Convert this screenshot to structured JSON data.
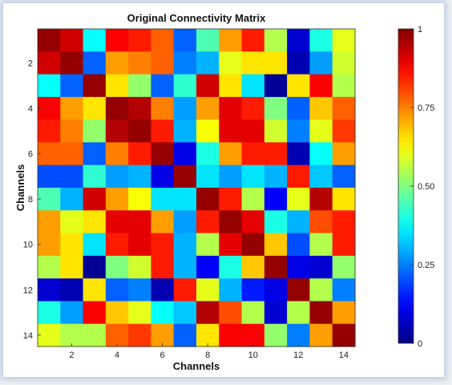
{
  "chart_data": {
    "type": "heatmap",
    "title": "Original Connectivity Matrix",
    "xlabel": "Channels",
    "ylabel": "Channels",
    "x_ticks": [
      "2",
      "4",
      "6",
      "8",
      "10",
      "12",
      "14"
    ],
    "y_ticks": [
      "2",
      "4",
      "6",
      "8",
      "10",
      "12",
      "14"
    ],
    "colorbar_ticks": [
      "0",
      "0.25",
      "0.50",
      "0.75",
      "1"
    ],
    "colormap": "jet",
    "value_range": [
      0,
      1
    ],
    "rows": 14,
    "cols": 14,
    "values": [
      [
        0.98,
        0.92,
        0.38,
        0.88,
        0.85,
        0.78,
        0.22,
        0.45,
        0.72,
        0.85,
        0.55,
        0.08,
        0.4,
        0.6
      ],
      [
        0.92,
        0.98,
        0.22,
        0.72,
        0.75,
        0.78,
        0.25,
        0.3,
        0.6,
        0.65,
        0.65,
        0.05,
        0.28,
        0.58
      ],
      [
        0.38,
        0.22,
        0.98,
        0.65,
        0.52,
        0.22,
        0.42,
        0.92,
        0.65,
        0.35,
        0.02,
        0.65,
        0.88,
        0.55
      ],
      [
        0.88,
        0.72,
        0.65,
        0.98,
        0.95,
        0.75,
        0.28,
        0.72,
        0.9,
        0.85,
        0.5,
        0.22,
        0.68,
        0.78
      ],
      [
        0.85,
        0.75,
        0.52,
        0.95,
        0.98,
        0.85,
        0.3,
        0.62,
        0.9,
        0.9,
        0.58,
        0.25,
        0.6,
        0.82
      ],
      [
        0.78,
        0.78,
        0.22,
        0.75,
        0.85,
        0.98,
        0.1,
        0.4,
        0.72,
        0.85,
        0.85,
        0.05,
        0.38,
        0.72
      ],
      [
        0.2,
        0.2,
        0.42,
        0.28,
        0.3,
        0.1,
        0.98,
        0.35,
        0.28,
        0.35,
        0.3,
        0.85,
        0.32,
        0.22
      ],
      [
        0.45,
        0.3,
        0.92,
        0.72,
        0.62,
        0.35,
        0.35,
        0.98,
        0.85,
        0.55,
        0.12,
        0.6,
        0.95,
        0.65
      ],
      [
        0.72,
        0.6,
        0.65,
        0.9,
        0.9,
        0.72,
        0.28,
        0.85,
        0.98,
        0.9,
        0.4,
        0.3,
        0.8,
        0.85
      ],
      [
        0.72,
        0.65,
        0.35,
        0.85,
        0.9,
        0.85,
        0.3,
        0.55,
        0.9,
        0.98,
        0.68,
        0.2,
        0.55,
        0.85
      ],
      [
        0.55,
        0.65,
        0.02,
        0.5,
        0.58,
        0.85,
        0.3,
        0.12,
        0.4,
        0.68,
        0.98,
        0.1,
        0.08,
        0.52
      ],
      [
        0.08,
        0.05,
        0.65,
        0.22,
        0.25,
        0.05,
        0.85,
        0.6,
        0.3,
        0.15,
        0.1,
        0.98,
        0.55,
        0.25
      ],
      [
        0.4,
        0.28,
        0.88,
        0.68,
        0.6,
        0.38,
        0.32,
        0.95,
        0.8,
        0.55,
        0.08,
        0.55,
        0.98,
        0.72
      ],
      [
        0.6,
        0.55,
        0.55,
        0.78,
        0.82,
        0.72,
        0.22,
        0.65,
        0.88,
        0.88,
        0.52,
        0.25,
        0.72,
        0.98
      ]
    ]
  }
}
